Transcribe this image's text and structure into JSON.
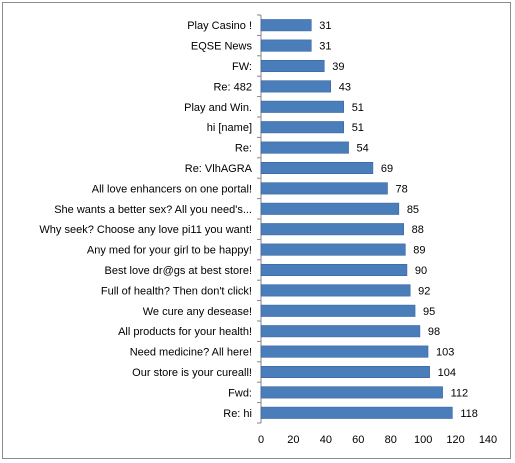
{
  "chart_data": {
    "type": "bar",
    "orientation": "horizontal",
    "categories": [
      "Play Casino !",
      "EQSE News",
      "FW:",
      "Re: 482",
      "Play and Win.",
      "hi [name]",
      "Re:",
      "Re: VlhAGRA",
      "All love enhancers on one portal!",
      "She wants a better sex? All you need's...",
      "Why seek? Choose any love pi11 you want!",
      "Any med for your girl to be happy!",
      "Best love dr@gs at best store!",
      "Full of health? Then don't click!",
      "We cure any desease!",
      "All products for your health!",
      "Need medicine? All here!",
      "Our store is your cureall!",
      "Fwd:",
      "Re: hi"
    ],
    "values": [
      31,
      31,
      39,
      43,
      51,
      51,
      54,
      69,
      78,
      85,
      88,
      89,
      90,
      92,
      95,
      98,
      103,
      104,
      112,
      118
    ],
    "xlim": [
      0,
      140
    ],
    "xticks": [
      0,
      20,
      40,
      60,
      80,
      100,
      120,
      140
    ],
    "xtick_labels": [
      "0",
      "20",
      "40",
      "60",
      "80",
      "100",
      "120",
      "140"
    ],
    "title": "",
    "xlabel": "",
    "ylabel": "",
    "grid": false,
    "legend": "none",
    "data_labels": true,
    "bar_color": "#4a7ebb",
    "bar_edge_color": "#3a64a0"
  }
}
